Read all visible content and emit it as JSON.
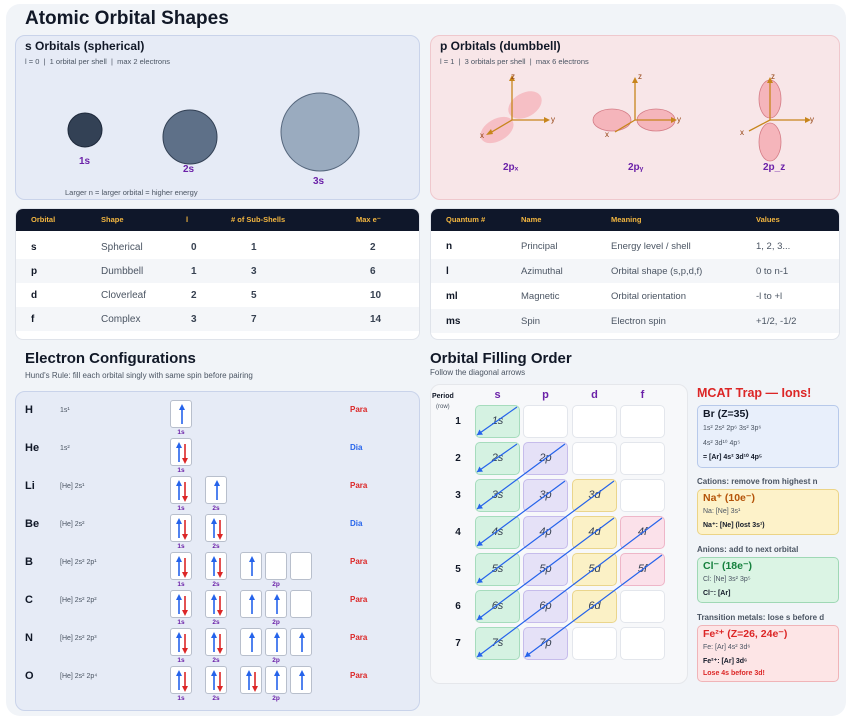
{
  "title": "Atomic Orbital Shapes",
  "s_panel": {
    "title": "s Orbitals (spherical)",
    "subtitle": "l = 0  |  1 orbital per shell  |  max 2 electrons",
    "labels": [
      "1s",
      "2s",
      "3s"
    ],
    "note": "Larger n = larger orbital = higher energy"
  },
  "p_panel": {
    "title": "p Orbitals (dumbbell)",
    "subtitle": "l = 1  |  3 orbitals per shell  |  max 6 electrons",
    "labels": [
      "2pₓ",
      "2pᵧ",
      "2p_z"
    ],
    "axis_labels": {
      "x": "x",
      "y": "y",
      "z": "z"
    }
  },
  "orbital_table": {
    "headers": [
      "Orbital",
      "Shape",
      "l",
      "# of Sub-Shells",
      "Max e⁻"
    ],
    "rows": [
      [
        "s",
        "Spherical",
        "0",
        "1",
        "2"
      ],
      [
        "p",
        "Dumbbell",
        "1",
        "3",
        "6"
      ],
      [
        "d",
        "Cloverleaf",
        "2",
        "5",
        "10"
      ],
      [
        "f",
        "Complex",
        "3",
        "7",
        "14"
      ]
    ]
  },
  "quantum_table": {
    "headers": [
      "Quantum #",
      "Name",
      "Meaning",
      "Values"
    ],
    "rows": [
      [
        "n",
        "Principal",
        "Energy level / shell",
        "1, 2, 3..."
      ],
      [
        "l",
        "Azimuthal",
        "Orbital shape (s,p,d,f)",
        "0 to n-1"
      ],
      [
        "ml",
        "Magnetic",
        "Orbital orientation",
        "-l to +l"
      ],
      [
        "ms",
        "Spin",
        "Electron spin",
        "+1/2, -1/2"
      ]
    ]
  },
  "electron_config": {
    "title": "Electron Configurations",
    "subtitle": "Hund's Rule: fill each orbital singly with same spin before pairing",
    "box_labels": {
      "s1": "1s",
      "s2": "2s",
      "p": "2p"
    },
    "elements": [
      {
        "symbol": "H",
        "config": "1s¹",
        "magnetism": "Para"
      },
      {
        "symbol": "He",
        "config": "1s²",
        "magnetism": "Dia"
      },
      {
        "symbol": "Li",
        "config": "[He] 2s¹",
        "magnetism": "Para"
      },
      {
        "symbol": "Be",
        "config": "[He] 2s²",
        "magnetism": "Dia"
      },
      {
        "symbol": "B",
        "config": "[He] 2s² 2p¹",
        "magnetism": "Para"
      },
      {
        "symbol": "C",
        "config": "[He] 2s² 2p²",
        "magnetism": "Para"
      },
      {
        "symbol": "N",
        "config": "[He] 2s² 2p³",
        "magnetism": "Para"
      },
      {
        "symbol": "O",
        "config": "[He] 2s² 2p⁴",
        "magnetism": "Para"
      }
    ],
    "colors": {
      "para": "#dc2626",
      "dia": "#2563eb",
      "up": "#2563eb",
      "down": "#dc2626"
    }
  },
  "filling": {
    "title": "Orbital Filling Order",
    "subtitle": "Follow the diagonal arrows",
    "period_label": "Period",
    "row_label": "(row)",
    "columns": [
      "s",
      "p",
      "d",
      "f"
    ],
    "periods": [
      "1",
      "2",
      "3",
      "4",
      "5",
      "6",
      "7"
    ],
    "cells": [
      [
        "1s",
        "",
        "",
        ""
      ],
      [
        "2s",
        "2p",
        "",
        ""
      ],
      [
        "3s",
        "3p",
        "3d",
        ""
      ],
      [
        "4s",
        "4p",
        "4d",
        "4f"
      ],
      [
        "5s",
        "5p",
        "5d",
        "5f"
      ],
      [
        "6s",
        "6p",
        "6d",
        ""
      ],
      [
        "7s",
        "7p",
        "",
        ""
      ]
    ]
  },
  "trap": {
    "title": "MCAT Trap — Ions!",
    "br": {
      "head": "Br (Z=35)",
      "line1": "1s² 2s² 2p⁶ 3s² 3p⁶",
      "line2": "4s² 3d¹⁰ 4p⁵",
      "line3": "= [Ar] 4s² 3d¹⁰ 4p⁵"
    },
    "cation_caption": "Cations: remove from highest n",
    "na": {
      "head": "Na⁺ (10e⁻)",
      "line1": "Na: [Ne] 3s¹",
      "line2": "Na⁺: [Ne] (lost 3s¹)"
    },
    "anion_caption": "Anions: add to next orbital",
    "cl": {
      "head": "Cl⁻ (18e⁻)",
      "line1": "Cl: [Ne] 3s² 3p⁵",
      "line2": "Cl⁻: [Ar]"
    },
    "tm_caption": "Transition metals: lose s before d",
    "fe": {
      "head": "Fe²⁺ (Z=26, 24e⁻)",
      "line1": "Fe: [Ar] 4s² 3d⁶",
      "line2": "Fe²⁺: [Ar] 3d⁶",
      "line3": "Lose 4s before 3d!"
    }
  }
}
